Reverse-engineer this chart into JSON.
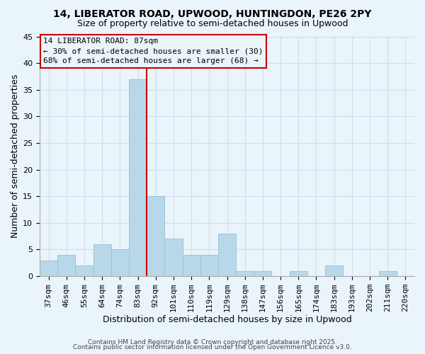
{
  "title1": "14, LIBERATOR ROAD, UPWOOD, HUNTINGDON, PE26 2PY",
  "title2": "Size of property relative to semi-detached houses in Upwood",
  "xlabel": "Distribution of semi-detached houses by size in Upwood",
  "ylabel": "Number of semi-detached properties",
  "footer1": "Contains HM Land Registry data © Crown copyright and database right 2025.",
  "footer2": "Contains public sector information licensed under the Open Government Licence v3.0.",
  "bin_labels": [
    "37sqm",
    "46sqm",
    "55sqm",
    "64sqm",
    "74sqm",
    "83sqm",
    "92sqm",
    "101sqm",
    "110sqm",
    "119sqm",
    "129sqm",
    "138sqm",
    "147sqm",
    "156sqm",
    "165sqm",
    "174sqm",
    "183sqm",
    "193sqm",
    "202sqm",
    "211sqm",
    "220sqm"
  ],
  "bin_values": [
    3,
    4,
    2,
    6,
    5,
    37,
    15,
    7,
    4,
    4,
    8,
    1,
    1,
    0,
    1,
    0,
    2,
    0,
    0,
    1,
    0
  ],
  "bar_color": "#b8d8ea",
  "bar_edge_color": "#9ac4d8",
  "grid_color": "#cce0ed",
  "bg_color": "#eaf4fb",
  "annotation_line_label": "14 LIBERATOR ROAD: 87sqm",
  "annotation_smaller": "← 30% of semi-detached houses are smaller (30)",
  "annotation_larger": "68% of semi-detached houses are larger (68) →",
  "red_line_color": "#cc0000",
  "box_edge_color": "#cc0000",
  "ylim": [
    0,
    45
  ],
  "yticks": [
    0,
    5,
    10,
    15,
    20,
    25,
    30,
    35,
    40,
    45
  ],
  "red_line_x": 6.0,
  "title1_fontsize": 10,
  "title2_fontsize": 9,
  "annotation_fontsize": 8,
  "xlabel_fontsize": 9,
  "ylabel_fontsize": 9,
  "tick_fontsize": 8,
  "footer_fontsize": 6.5
}
